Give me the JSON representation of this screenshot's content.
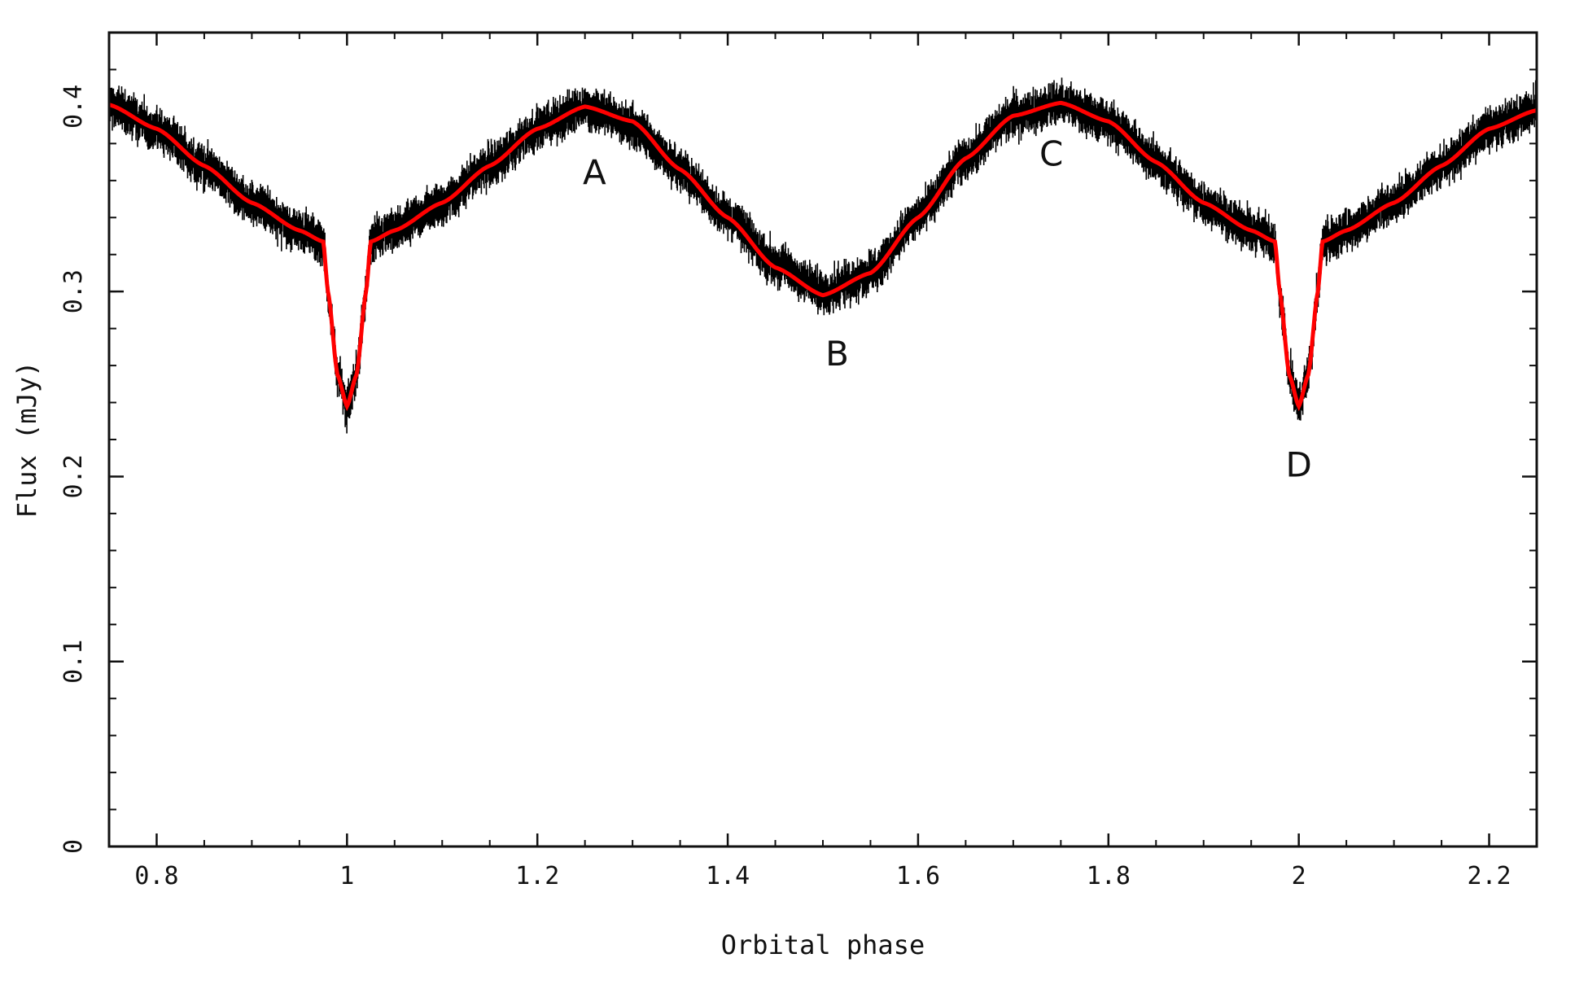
{
  "chart_data": {
    "type": "line",
    "xlabel": "Orbital phase",
    "ylabel": "Flux (mJy)",
    "xlim": [
      0.75,
      2.25
    ],
    "ylim": [
      0,
      0.44
    ],
    "xticks": [
      0.8,
      1,
      1.2,
      1.4,
      1.6,
      1.8,
      2,
      2.2
    ],
    "xtick_labels": [
      "0.8",
      "1",
      "1.2",
      "1.4",
      "1.6",
      "1.8",
      "2",
      "2.2"
    ],
    "yticks": [
      0,
      0.1,
      0.2,
      0.3,
      0.4
    ],
    "ytick_labels": [
      "0",
      "0.1",
      "0.2",
      "0.3",
      "0.4"
    ],
    "grid": false,
    "colors": {
      "data": "#000000",
      "model": "#ff0000"
    },
    "series": [
      {
        "kind": "observed flux (noisy points)",
        "x": [
          0.75,
          0.8,
          0.85,
          0.9,
          0.95,
          0.975,
          0.98,
          0.99,
          1.0,
          1.01,
          1.02,
          1.025,
          1.05,
          1.1,
          1.15,
          1.2,
          1.25,
          1.3,
          1.35,
          1.4,
          1.45,
          1.5,
          1.55,
          1.6,
          1.65,
          1.7,
          1.75,
          1.8,
          1.85,
          1.9,
          1.95,
          1.975,
          1.98,
          1.99,
          2.0,
          2.01,
          2.02,
          2.025,
          2.05,
          2.1,
          2.15,
          2.2,
          2.25
        ],
        "y": [
          0.401,
          0.388,
          0.368,
          0.348,
          0.333,
          0.327,
          0.3,
          0.255,
          0.238,
          0.255,
          0.3,
          0.327,
          0.333,
          0.348,
          0.368,
          0.388,
          0.4,
          0.39,
          0.366,
          0.34,
          0.315,
          0.3,
          0.31,
          0.34,
          0.372,
          0.395,
          0.402,
          0.392,
          0.37,
          0.348,
          0.333,
          0.327,
          0.3,
          0.255,
          0.238,
          0.255,
          0.3,
          0.327,
          0.333,
          0.348,
          0.368,
          0.388,
          0.398
        ],
        "scatter": 0.008
      },
      {
        "kind": "model fit",
        "x": [
          0.75,
          0.8,
          0.85,
          0.9,
          0.95,
          0.975,
          0.98,
          0.99,
          1.0,
          1.01,
          1.02,
          1.025,
          1.05,
          1.1,
          1.15,
          1.2,
          1.25,
          1.3,
          1.35,
          1.4,
          1.45,
          1.5,
          1.55,
          1.6,
          1.65,
          1.7,
          1.75,
          1.8,
          1.85,
          1.9,
          1.95,
          1.975,
          1.98,
          1.99,
          2.0,
          2.01,
          2.02,
          2.025,
          2.05,
          2.1,
          2.15,
          2.2,
          2.25
        ],
        "y": [
          0.401,
          0.388,
          0.368,
          0.348,
          0.333,
          0.327,
          0.3,
          0.255,
          0.238,
          0.255,
          0.3,
          0.327,
          0.333,
          0.348,
          0.368,
          0.388,
          0.4,
          0.392,
          0.366,
          0.34,
          0.313,
          0.298,
          0.31,
          0.34,
          0.372,
          0.395,
          0.402,
          0.392,
          0.37,
          0.348,
          0.333,
          0.327,
          0.3,
          0.255,
          0.238,
          0.255,
          0.3,
          0.327,
          0.333,
          0.348,
          0.368,
          0.388,
          0.398
        ]
      }
    ],
    "annotations": [
      {
        "text": "A",
        "x": 1.26,
        "y": 0.358
      },
      {
        "text": "B",
        "x": 1.515,
        "y": 0.26
      },
      {
        "text": "C",
        "x": 1.74,
        "y": 0.368
      },
      {
        "text": "D",
        "x": 2.0,
        "y": 0.2
      }
    ]
  }
}
